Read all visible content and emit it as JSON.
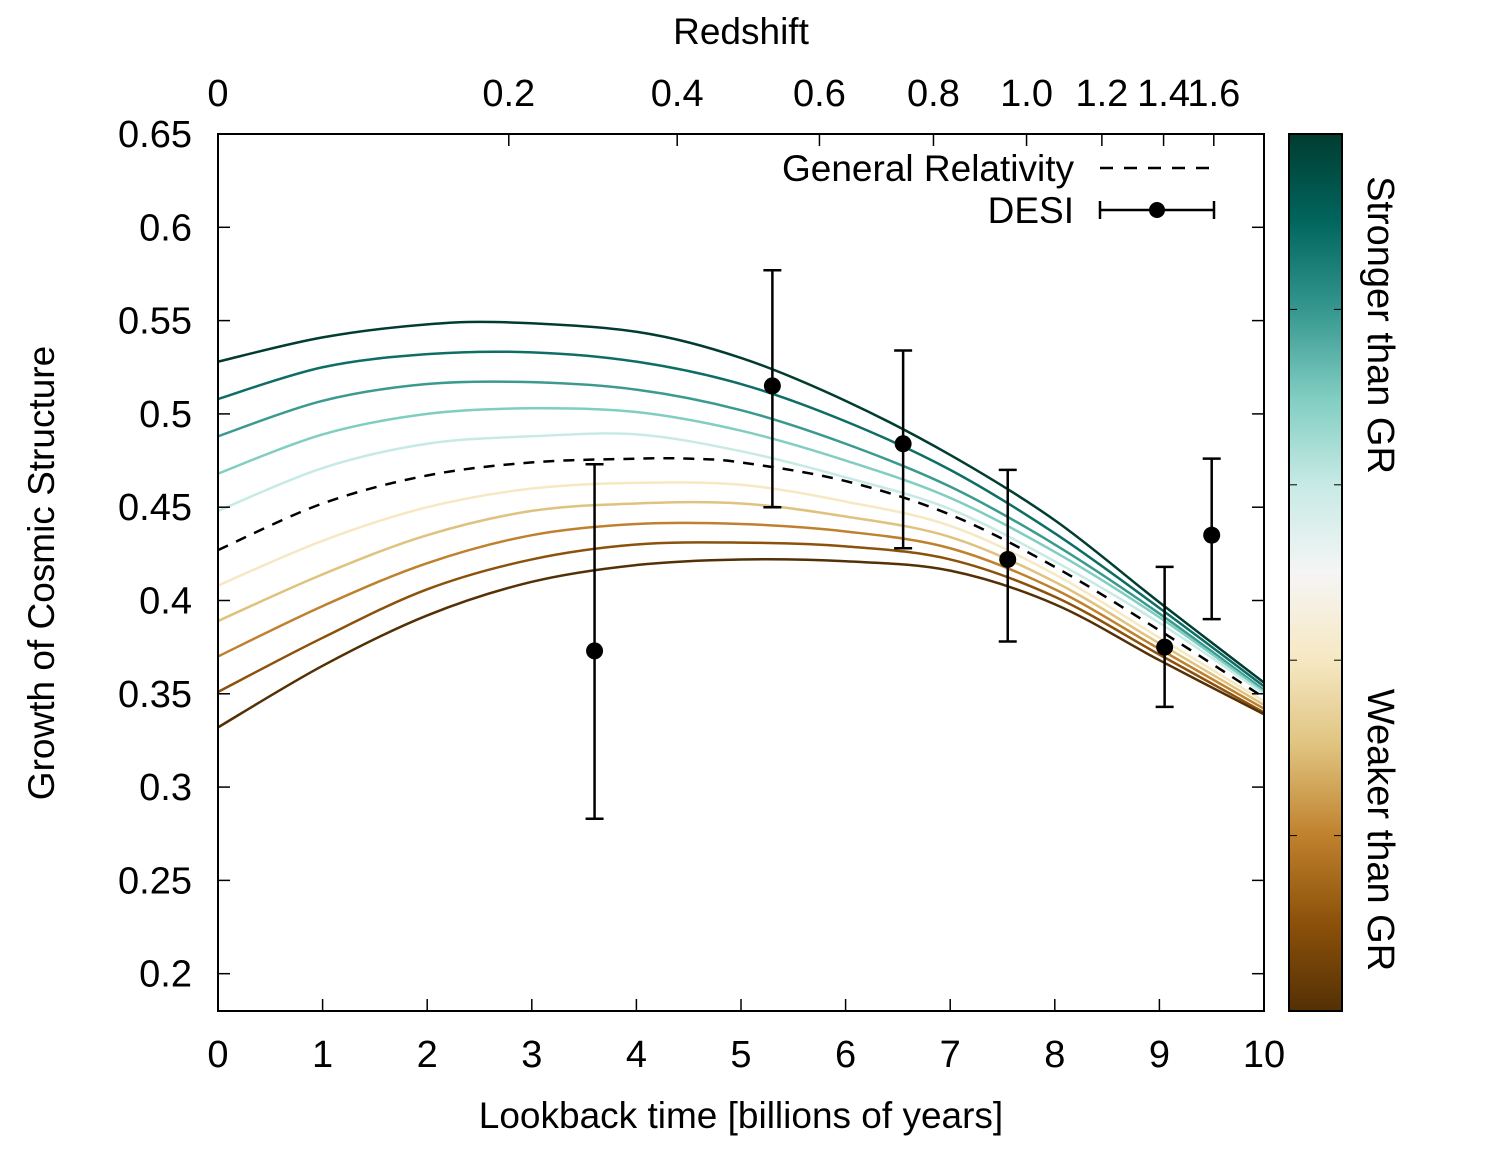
{
  "chart_data": {
    "type": "line",
    "title": "",
    "xlabel": "Lookback time [billions of years]",
    "x2label": "Redshift",
    "ylabel": "Growth of Cosmic Structure",
    "xlim": [
      0,
      10
    ],
    "ylim": [
      0.18,
      0.65
    ],
    "x_ticks": [
      0,
      1,
      2,
      3,
      4,
      5,
      6,
      7,
      8,
      9,
      10
    ],
    "y_ticks": [
      0.2,
      0.25,
      0.3,
      0.35,
      0.4,
      0.45,
      0.5,
      0.55,
      0.6,
      0.65
    ],
    "redshift_ticks": [
      {
        "label": "0",
        "t": 0.0
      },
      {
        "label": "0.2",
        "t": 2.78
      },
      {
        "label": "0.4",
        "t": 4.39
      },
      {
        "label": "0.6",
        "t": 5.75
      },
      {
        "label": "0.8",
        "t": 6.84
      },
      {
        "label": "1.0",
        "t": 7.73
      },
      {
        "label": "1.2",
        "t": 8.45
      },
      {
        "label": "1.4",
        "t": 9.04
      },
      {
        "label": "1.6",
        "t": 9.52
      }
    ],
    "legend": {
      "position": "top-right",
      "entries": [
        {
          "label": "General Relativity",
          "style": "dashed"
        },
        {
          "label": "DESI",
          "style": "points-with-errorbars"
        }
      ]
    },
    "gr_curve": {
      "name": "General Relativity",
      "x": [
        0,
        1,
        2,
        3,
        4,
        4.5,
        5,
        6,
        7,
        8,
        9,
        10
      ],
      "y": [
        0.427,
        0.452,
        0.467,
        0.474,
        0.476,
        0.476,
        0.474,
        0.464,
        0.446,
        0.418,
        0.384,
        0.348
      ]
    },
    "model_curves": [
      {
        "x": [
          0,
          1,
          2,
          2.8,
          4,
          5,
          6,
          7,
          8,
          9,
          10
        ],
        "y": [
          0.528,
          0.541,
          0.548,
          0.549,
          0.544,
          0.53,
          0.507,
          0.478,
          0.443,
          0.399,
          0.356
        ],
        "color": "#003c30"
      },
      {
        "x": [
          0,
          1,
          2,
          3,
          4,
          5,
          6,
          7,
          8,
          9,
          10
        ],
        "y": [
          0.508,
          0.525,
          0.532,
          0.533,
          0.528,
          0.516,
          0.496,
          0.47,
          0.436,
          0.396,
          0.354
        ],
        "color": "#0e6e66"
      },
      {
        "x": [
          0,
          1,
          2,
          3,
          4,
          5,
          6,
          7,
          8,
          9,
          10
        ],
        "y": [
          0.488,
          0.507,
          0.516,
          0.517,
          0.513,
          0.502,
          0.484,
          0.461,
          0.43,
          0.393,
          0.352
        ],
        "color": "#3a9a8e"
      },
      {
        "x": [
          0,
          1,
          2,
          3,
          4,
          5,
          6,
          7,
          8,
          9,
          10
        ],
        "y": [
          0.468,
          0.489,
          0.5,
          0.503,
          0.501,
          0.491,
          0.475,
          0.455,
          0.426,
          0.391,
          0.351
        ],
        "color": "#80cdc1"
      },
      {
        "x": [
          0,
          1,
          2,
          3,
          4,
          5,
          6,
          7,
          8,
          9,
          10
        ],
        "y": [
          0.448,
          0.471,
          0.484,
          0.488,
          0.489,
          0.48,
          0.466,
          0.449,
          0.421,
          0.388,
          0.35
        ],
        "color": "#c7eae5"
      },
      {
        "x": [
          0,
          1,
          2,
          3,
          4,
          5,
          6,
          7,
          8,
          9,
          10
        ],
        "y": [
          0.408,
          0.432,
          0.45,
          0.46,
          0.463,
          0.462,
          0.453,
          0.44,
          0.414,
          0.38,
          0.346
        ],
        "color": "#f6e8c3"
      },
      {
        "x": [
          0,
          1,
          2,
          3,
          4,
          5,
          6,
          7,
          8,
          9,
          10
        ],
        "y": [
          0.389,
          0.414,
          0.435,
          0.448,
          0.452,
          0.452,
          0.445,
          0.434,
          0.41,
          0.377,
          0.344
        ],
        "color": "#dfc27d"
      },
      {
        "x": [
          0,
          1,
          2,
          3,
          4,
          5,
          6,
          7,
          8,
          9,
          10
        ],
        "y": [
          0.37,
          0.397,
          0.42,
          0.435,
          0.441,
          0.441,
          0.437,
          0.428,
          0.406,
          0.374,
          0.342
        ],
        "color": "#bf812d"
      },
      {
        "x": [
          0,
          1,
          2,
          3,
          4,
          5,
          6,
          7,
          8,
          9,
          10
        ],
        "y": [
          0.351,
          0.38,
          0.406,
          0.422,
          0.43,
          0.431,
          0.429,
          0.422,
          0.402,
          0.371,
          0.34
        ],
        "color": "#8c510a"
      },
      {
        "x": [
          0,
          1,
          2,
          3,
          4,
          5,
          6,
          7,
          8,
          9,
          10
        ],
        "y": [
          0.332,
          0.365,
          0.392,
          0.41,
          0.419,
          0.422,
          0.421,
          0.416,
          0.398,
          0.368,
          0.339
        ],
        "color": "#543005"
      }
    ],
    "desi_points": {
      "name": "DESI",
      "x": [
        3.6,
        5.3,
        6.55,
        7.55,
        9.05,
        9.5
      ],
      "y": [
        0.373,
        0.515,
        0.484,
        0.422,
        0.375,
        0.435
      ],
      "yerr_low": [
        0.283,
        0.45,
        0.428,
        0.378,
        0.343,
        0.39
      ],
      "yerr_high": [
        0.473,
        0.577,
        0.534,
        0.47,
        0.418,
        0.476
      ]
    },
    "colorbar": {
      "position": "right",
      "colors": [
        "#003c30",
        "#01665e",
        "#35978f",
        "#80cdc1",
        "#c7eae5",
        "#f5f5f5",
        "#f6e8c3",
        "#dfc27d",
        "#bf812d",
        "#8c510a",
        "#543005"
      ],
      "top_label": "Stronger than GR",
      "bottom_label": "Weaker than GR"
    },
    "grid": false
  }
}
